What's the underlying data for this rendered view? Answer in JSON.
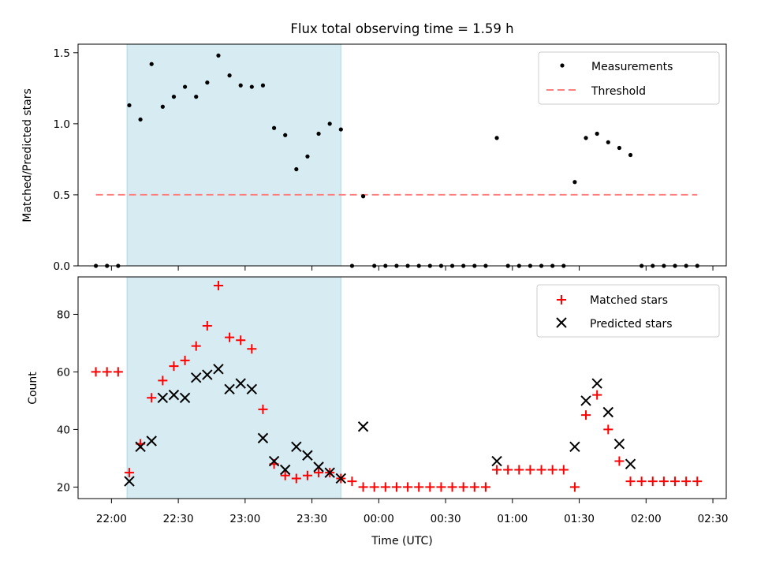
{
  "chart_data": [
    {
      "type": "scatter",
      "title": "Flux total observing time = 1.59 h",
      "xlabel": "",
      "ylabel": "Matched/Predicted stars",
      "xlim": [
        "21:45",
        "02:36"
      ],
      "ylim": [
        0,
        1.56
      ],
      "yticks": [
        "0.0",
        "0.5",
        "1.0",
        "1.5"
      ],
      "shaded_span": [
        "22:07",
        "23:43"
      ],
      "legend_position": "upper right",
      "series": [
        {
          "name": "Measurements",
          "marker": "dot",
          "color": "#000000",
          "points": [
            [
              "21:53",
              0
            ],
            [
              "21:58",
              0
            ],
            [
              "22:03",
              0
            ],
            [
              "22:08",
              1.13
            ],
            [
              "22:13",
              1.03
            ],
            [
              "22:18",
              1.42
            ],
            [
              "22:23",
              1.12
            ],
            [
              "22:28",
              1.19
            ],
            [
              "22:33",
              1.26
            ],
            [
              "22:38",
              1.19
            ],
            [
              "22:43",
              1.29
            ],
            [
              "22:48",
              1.48
            ],
            [
              "22:53",
              1.34
            ],
            [
              "22:58",
              1.27
            ],
            [
              "23:03",
              1.26
            ],
            [
              "23:08",
              1.27
            ],
            [
              "23:13",
              0.97
            ],
            [
              "23:18",
              0.92
            ],
            [
              "23:23",
              0.68
            ],
            [
              "23:28",
              0.77
            ],
            [
              "23:33",
              0.93
            ],
            [
              "23:38",
              1.0
            ],
            [
              "23:43",
              0.96
            ],
            [
              "23:48",
              0
            ],
            [
              "23:53",
              0.49
            ],
            [
              "23:58",
              0
            ],
            [
              "00:03",
              0
            ],
            [
              "00:08",
              0
            ],
            [
              "00:13",
              0
            ],
            [
              "00:18",
              0
            ],
            [
              "00:23",
              0
            ],
            [
              "00:28",
              0
            ],
            [
              "00:33",
              0
            ],
            [
              "00:38",
              0
            ],
            [
              "00:43",
              0
            ],
            [
              "00:48",
              0
            ],
            [
              "00:53",
              0.9
            ],
            [
              "00:58",
              0
            ],
            [
              "01:03",
              0
            ],
            [
              "01:08",
              0
            ],
            [
              "01:13",
              0
            ],
            [
              "01:18",
              0
            ],
            [
              "01:23",
              0
            ],
            [
              "01:28",
              0.59
            ],
            [
              "01:33",
              0.9
            ],
            [
              "01:38",
              0.93
            ],
            [
              "01:43",
              0.87
            ],
            [
              "01:48",
              0.83
            ],
            [
              "01:53",
              0.78
            ],
            [
              "01:58",
              0
            ],
            [
              "02:03",
              0
            ],
            [
              "02:08",
              0
            ],
            [
              "02:13",
              0
            ],
            [
              "02:18",
              0
            ],
            [
              "02:23",
              0
            ]
          ]
        },
        {
          "name": "Threshold",
          "marker": "dashed-line",
          "color": "#ff7f7f",
          "points": [
            [
              "21:53",
              0.5
            ],
            [
              "02:23",
              0.5
            ]
          ]
        }
      ]
    },
    {
      "type": "scatter",
      "title": "",
      "xlabel": "Time (UTC)",
      "ylabel": "Count",
      "xlim": [
        "21:45",
        "02:36"
      ],
      "ylim": [
        16,
        93
      ],
      "yticks": [
        "20",
        "40",
        "60",
        "80"
      ],
      "xticks": [
        "22:00",
        "22:30",
        "23:00",
        "23:30",
        "00:00",
        "00:30",
        "01:00",
        "01:30",
        "02:00",
        "02:30"
      ],
      "shaded_span": [
        "22:07",
        "23:43"
      ],
      "legend_position": "upper right",
      "series": [
        {
          "name": "Matched stars",
          "marker": "plus",
          "color": "#ff0000",
          "points": [
            [
              "21:53",
              60
            ],
            [
              "21:58",
              60
            ],
            [
              "22:03",
              60
            ],
            [
              "22:08",
              25
            ],
            [
              "22:13",
              35
            ],
            [
              "22:18",
              51
            ],
            [
              "22:23",
              57
            ],
            [
              "22:28",
              62
            ],
            [
              "22:33",
              64
            ],
            [
              "22:38",
              69
            ],
            [
              "22:43",
              76
            ],
            [
              "22:48",
              90
            ],
            [
              "22:53",
              72
            ],
            [
              "22:58",
              71
            ],
            [
              "23:03",
              68
            ],
            [
              "23:08",
              47
            ],
            [
              "23:13",
              28
            ],
            [
              "23:18",
              24
            ],
            [
              "23:23",
              23
            ],
            [
              "23:28",
              24
            ],
            [
              "23:33",
              25
            ],
            [
              "23:38",
              25
            ],
            [
              "23:43",
              23
            ],
            [
              "23:48",
              22
            ],
            [
              "23:53",
              20
            ],
            [
              "23:58",
              20
            ],
            [
              "00:03",
              20
            ],
            [
              "00:08",
              20
            ],
            [
              "00:13",
              20
            ],
            [
              "00:18",
              20
            ],
            [
              "00:23",
              20
            ],
            [
              "00:28",
              20
            ],
            [
              "00:33",
              20
            ],
            [
              "00:38",
              20
            ],
            [
              "00:43",
              20
            ],
            [
              "00:48",
              20
            ],
            [
              "00:53",
              26
            ],
            [
              "00:58",
              26
            ],
            [
              "01:03",
              26
            ],
            [
              "01:08",
              26
            ],
            [
              "01:13",
              26
            ],
            [
              "01:18",
              26
            ],
            [
              "01:23",
              26
            ],
            [
              "01:28",
              20
            ],
            [
              "01:33",
              45
            ],
            [
              "01:38",
              52
            ],
            [
              "01:43",
              40
            ],
            [
              "01:48",
              29
            ],
            [
              "01:53",
              22
            ],
            [
              "01:58",
              22
            ],
            [
              "02:03",
              22
            ],
            [
              "02:08",
              22
            ],
            [
              "02:13",
              22
            ],
            [
              "02:18",
              22
            ],
            [
              "02:23",
              22
            ]
          ]
        },
        {
          "name": "Predicted stars",
          "marker": "x",
          "color": "#000000",
          "points": [
            [
              "22:08",
              22
            ],
            [
              "22:13",
              34
            ],
            [
              "22:18",
              36
            ],
            [
              "22:23",
              51
            ],
            [
              "22:28",
              52
            ],
            [
              "22:33",
              51
            ],
            [
              "22:38",
              58
            ],
            [
              "22:43",
              59
            ],
            [
              "22:48",
              61
            ],
            [
              "22:53",
              54
            ],
            [
              "22:58",
              56
            ],
            [
              "23:03",
              54
            ],
            [
              "23:08",
              37
            ],
            [
              "23:13",
              29
            ],
            [
              "23:18",
              26
            ],
            [
              "23:23",
              34
            ],
            [
              "23:28",
              31
            ],
            [
              "23:33",
              27
            ],
            [
              "23:38",
              25
            ],
            [
              "23:43",
              23
            ],
            [
              "23:53",
              41
            ],
            [
              "00:53",
              29
            ],
            [
              "01:28",
              34
            ],
            [
              "01:33",
              50
            ],
            [
              "01:38",
              56
            ],
            [
              "01:43",
              46
            ],
            [
              "01:48",
              35
            ],
            [
              "01:53",
              28
            ]
          ]
        }
      ]
    }
  ]
}
